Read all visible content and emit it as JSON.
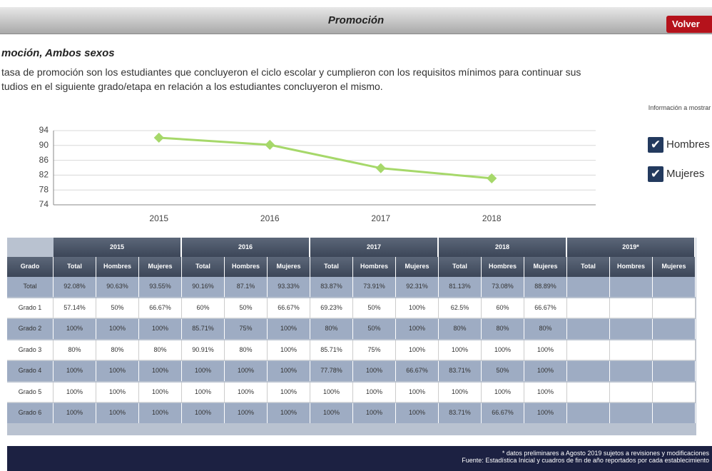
{
  "header": {
    "title": "Promoción",
    "back_button": "Volver"
  },
  "subtitle": "moción, Ambos sexos",
  "description": [
    "tasa de promoción son los estudiantes que concluyeron el ciclo escolar y cumplieron con los requisitos mínimos para continuar sus",
    "tudios en el siguiente grado/etapa en relación a los estudiantes concluyeron el mismo."
  ],
  "panel": {
    "title": "Información a mostrar",
    "options": [
      "Hombres",
      "Mujeres"
    ]
  },
  "chart_data": {
    "type": "line",
    "categories": [
      "2015",
      "2016",
      "2017",
      "2018"
    ],
    "values": [
      92.08,
      90.16,
      83.87,
      81.13
    ],
    "color": "#a6d86a",
    "ylim": [
      74,
      94
    ],
    "yticks": [
      74,
      78,
      82,
      86,
      90,
      94
    ],
    "grid": true
  },
  "table": {
    "years": [
      "2015",
      "2016",
      "2017",
      "2018",
      "2019*"
    ],
    "grade_header": "Grado",
    "subheaders": [
      "Total",
      "Hombres",
      "Mujeres"
    ],
    "rows": [
      [
        "Total",
        "92.08%",
        "90.63%",
        "93.55%",
        "90.16%",
        "87.1%",
        "93.33%",
        "83.87%",
        "73.91%",
        "92.31%",
        "81.13%",
        "73.08%",
        "88.89%"
      ],
      [
        "Grado 1",
        "57.14%",
        "50%",
        "66.67%",
        "60%",
        "50%",
        "66.67%",
        "69.23%",
        "50%",
        "100%",
        "62.5%",
        "60%",
        "66.67%"
      ],
      [
        "Grado 2",
        "100%",
        "100%",
        "100%",
        "85.71%",
        "75%",
        "100%",
        "80%",
        "50%",
        "100%",
        "80%",
        "80%",
        "80%"
      ],
      [
        "Grado 3",
        "80%",
        "80%",
        "80%",
        "90.91%",
        "80%",
        "100%",
        "85.71%",
        "75%",
        "100%",
        "100%",
        "100%",
        "100%"
      ],
      [
        "Grado 4",
        "100%",
        "100%",
        "100%",
        "100%",
        "100%",
        "100%",
        "77.78%",
        "100%",
        "66.67%",
        "83.71%",
        "50%",
        "100%"
      ],
      [
        "Grado 5",
        "100%",
        "100%",
        "100%",
        "100%",
        "100%",
        "100%",
        "100%",
        "100%",
        "100%",
        "100%",
        "100%",
        "100%"
      ],
      [
        "Grado 6",
        "100%",
        "100%",
        "100%",
        "100%",
        "100%",
        "100%",
        "100%",
        "100%",
        "100%",
        "83.71%",
        "66.67%",
        "100%"
      ]
    ]
  },
  "footer": [
    "* datos preliminares a Agosto 2019 sujetos a revisiones y modificaciones",
    "Fuente: Estadística Inicial y cuadros de fin de año reportados por cada establecimiento"
  ]
}
